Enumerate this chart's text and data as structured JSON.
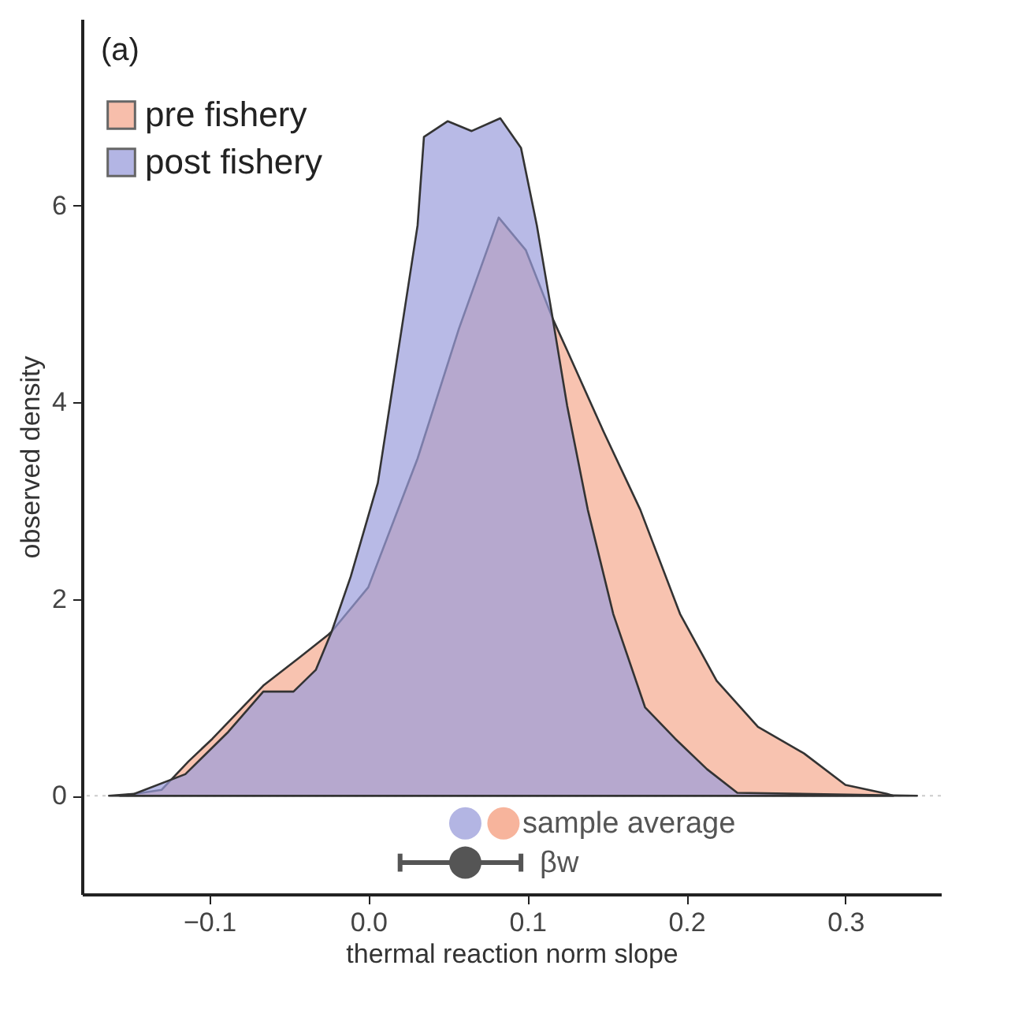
{
  "chart_data": {
    "type": "area",
    "annotations": [
      "(a)",
      {
        "text": "sample average",
        "x": 0.085,
        "y": -0.28
      },
      {
        "text": "βw",
        "x": 0.096,
        "y": -0.68
      }
    ],
    "xlabel": "thermal reaction norm slope",
    "ylabel": "observed density",
    "xlim": [
      -0.18,
      0.36
    ],
    "ylim": [
      -1.0,
      7.9
    ],
    "xticks": [
      {
        "value": -0.1,
        "label": "−0.1"
      },
      {
        "value": 0,
        "label": "0.0"
      },
      {
        "value": 0.1,
        "label": "0.1"
      },
      {
        "value": 0.2,
        "label": "0.2"
      },
      {
        "value": 0.3,
        "label": "0.3"
      }
    ],
    "yticks": [
      0,
      2,
      4,
      6
    ],
    "grid": false,
    "legend": "top left",
    "ref_lines": [
      {
        "axis": "y",
        "value": 0,
        "color": "#cccccc",
        "line_style": "dotted"
      }
    ],
    "series": [
      {
        "name": "pre fishery",
        "color": "#f5a98f",
        "x": [
          -0.156,
          -0.142,
          -0.13,
          -0.113,
          -0.098,
          -0.066,
          -0.043,
          -0.025,
          -0.023,
          0.0,
          0.031,
          0.057,
          0.082,
          0.099,
          0.116,
          0.125,
          0.148,
          0.171,
          0.196,
          0.219,
          0.245,
          0.274,
          0.3,
          0.326,
          0.33
        ],
        "values": [
          0,
          0.03,
          0.06,
          0.35,
          0.58,
          1.12,
          1.41,
          1.64,
          1.67,
          2.12,
          3.43,
          4.75,
          5.88,
          5.55,
          4.85,
          4.53,
          3.7,
          2.91,
          1.85,
          1.17,
          0.7,
          0.43,
          0.11,
          0.02,
          0
        ]
      },
      {
        "name": "post fishery",
        "color": "#9a9ddb",
        "x": [
          -0.163,
          -0.147,
          -0.115,
          -0.088,
          -0.066,
          -0.047,
          -0.033,
          -0.023,
          -0.011,
          0.006,
          0.021,
          0.031,
          0.035,
          0.05,
          0.065,
          0.083,
          0.096,
          0.106,
          0.116,
          0.125,
          0.138,
          0.154,
          0.174,
          0.193,
          0.213,
          0.232,
          0.345
        ],
        "values": [
          0,
          0.02,
          0.22,
          0.65,
          1.06,
          1.06,
          1.28,
          1.67,
          2.23,
          3.18,
          4.75,
          5.8,
          6.7,
          6.86,
          6.76,
          6.89,
          6.59,
          5.8,
          4.85,
          3.97,
          2.91,
          1.85,
          0.9,
          0.58,
          0.27,
          0.03,
          0
        ]
      },
      {
        "type": "scatter",
        "x": [
          0.061,
          0.085
        ],
        "values": [
          -0.28,
          -0.28
        ],
        "colors": [
          "#b3b5e3",
          "#f7b49c"
        ]
      },
      {
        "type": "scatter",
        "color": "#555555",
        "x": [
          0.061
        ],
        "values": [
          -0.68
        ],
        "xerrors": [
          [
            0.02,
            0.096
          ]
        ]
      }
    ]
  }
}
